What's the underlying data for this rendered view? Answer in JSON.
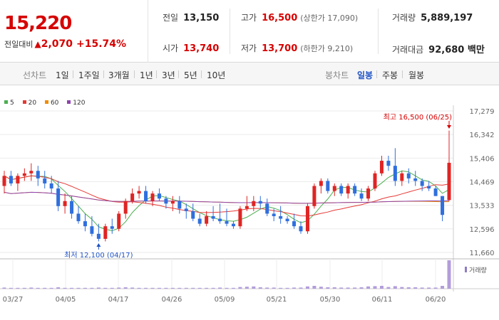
{
  "quote": {
    "price": "15,220",
    "change_label": "전일대비",
    "change_arrow": "▲",
    "change_amount": "2,070",
    "change_percent": "+15.74%"
  },
  "stats": {
    "prev_close": {
      "label": "전일",
      "value": "13,150"
    },
    "high": {
      "label": "고가",
      "value": "16,500",
      "sub": "(상한가 17,090)"
    },
    "volume": {
      "label": "거래량",
      "value": "5,889,197"
    },
    "open": {
      "label": "시가",
      "value": "13,740"
    },
    "low": {
      "label": "저가",
      "value": "13,700",
      "sub": "(하한가 9,210)"
    },
    "amount": {
      "label": "거래대금",
      "value": "92,680 백만"
    }
  },
  "periods": {
    "label": "선차트",
    "items": [
      "1일",
      "1주일",
      "3개월",
      "1년",
      "3년",
      "5년",
      "10년"
    ],
    "candle_label": "봉차트",
    "candle_items": [
      "일봉",
      "주봉",
      "월봉"
    ],
    "selected_candle": "일봉"
  },
  "legend": [
    {
      "label": "5",
      "color": "#4caf50"
    },
    {
      "label": "20",
      "color": "#e53935"
    },
    {
      "label": "60",
      "color": "#f08c00"
    },
    {
      "label": "120",
      "color": "#8e44ad"
    }
  ],
  "colors": {
    "up": "#e02424",
    "down": "#2f6fde"
  },
  "chart_data": {
    "type": "candlestick",
    "y_ticks": [
      "17,279",
      "16,342",
      "15,406",
      "14,469",
      "13,533",
      "12,596",
      "11,660"
    ],
    "ylim": [
      11660,
      17279
    ],
    "x_ticks": [
      "03/27",
      "04/05",
      "04/17",
      "04/26",
      "05/09",
      "05/21",
      "05/30",
      "06/11",
      "06/20"
    ],
    "annotations": {
      "high": "최고 16,500 (06/25)",
      "low": "최저 12,100 (04/17)"
    },
    "volume_label": "거래량",
    "candles": [
      {
        "o": 14300,
        "h": 14900,
        "l": 14000,
        "c": 14700
      },
      {
        "o": 14700,
        "h": 14900,
        "l": 14300,
        "c": 14400
      },
      {
        "o": 14400,
        "h": 14800,
        "l": 14100,
        "c": 14700
      },
      {
        "o": 14700,
        "h": 15000,
        "l": 14500,
        "c": 14800
      },
      {
        "o": 14800,
        "h": 15200,
        "l": 14500,
        "c": 14900
      },
      {
        "o": 14900,
        "h": 15100,
        "l": 14300,
        "c": 14600
      },
      {
        "o": 14600,
        "h": 14900,
        "l": 14200,
        "c": 14400
      },
      {
        "o": 14400,
        "h": 14700,
        "l": 14000,
        "c": 14200
      },
      {
        "o": 14200,
        "h": 14500,
        "l": 13300,
        "c": 13500
      },
      {
        "o": 13500,
        "h": 14000,
        "l": 13200,
        "c": 13700
      },
      {
        "o": 13700,
        "h": 13900,
        "l": 13000,
        "c": 13200
      },
      {
        "o": 13200,
        "h": 13500,
        "l": 12800,
        "c": 12900
      },
      {
        "o": 12900,
        "h": 13200,
        "l": 12500,
        "c": 12700
      },
      {
        "o": 12700,
        "h": 13100,
        "l": 12300,
        "c": 12400
      },
      {
        "o": 12400,
        "h": 12800,
        "l": 12100,
        "c": 12200
      },
      {
        "o": 12200,
        "h": 12800,
        "l": 12100,
        "c": 12700
      },
      {
        "o": 12700,
        "h": 13000,
        "l": 12400,
        "c": 12600
      },
      {
        "o": 12600,
        "h": 13300,
        "l": 12500,
        "c": 13200
      },
      {
        "o": 13200,
        "h": 13800,
        "l": 13000,
        "c": 13700
      },
      {
        "o": 13700,
        "h": 14200,
        "l": 13600,
        "c": 14000
      },
      {
        "o": 14000,
        "h": 14300,
        "l": 13800,
        "c": 14100
      },
      {
        "o": 14100,
        "h": 14300,
        "l": 13600,
        "c": 13700
      },
      {
        "o": 13700,
        "h": 14100,
        "l": 13500,
        "c": 14000
      },
      {
        "o": 14000,
        "h": 14200,
        "l": 13700,
        "c": 13800
      },
      {
        "o": 13800,
        "h": 13900,
        "l": 13400,
        "c": 13600
      },
      {
        "o": 13600,
        "h": 13900,
        "l": 13300,
        "c": 13700
      },
      {
        "o": 13700,
        "h": 13900,
        "l": 13200,
        "c": 13400
      },
      {
        "o": 13400,
        "h": 13600,
        "l": 13000,
        "c": 13300
      },
      {
        "o": 13300,
        "h": 13600,
        "l": 12900,
        "c": 13000
      },
      {
        "o": 13000,
        "h": 13200,
        "l": 12700,
        "c": 12800
      },
      {
        "o": 12800,
        "h": 13300,
        "l": 12700,
        "c": 13100
      },
      {
        "o": 13100,
        "h": 13500,
        "l": 12900,
        "c": 13000
      },
      {
        "o": 13000,
        "h": 13600,
        "l": 12800,
        "c": 12900
      },
      {
        "o": 12900,
        "h": 13400,
        "l": 12700,
        "c": 12800
      },
      {
        "o": 12800,
        "h": 12900,
        "l": 12600,
        "c": 12700
      },
      {
        "o": 12700,
        "h": 13500,
        "l": 12600,
        "c": 13400
      },
      {
        "o": 13400,
        "h": 13900,
        "l": 13300,
        "c": 13500
      },
      {
        "o": 13500,
        "h": 13900,
        "l": 13300,
        "c": 13700
      },
      {
        "o": 13700,
        "h": 13900,
        "l": 13400,
        "c": 13600
      },
      {
        "o": 13600,
        "h": 13800,
        "l": 13100,
        "c": 13200
      },
      {
        "o": 13200,
        "h": 13400,
        "l": 12900,
        "c": 13100
      },
      {
        "o": 13100,
        "h": 13500,
        "l": 12800,
        "c": 13000
      },
      {
        "o": 13000,
        "h": 13100,
        "l": 12800,
        "c": 12900
      },
      {
        "o": 12900,
        "h": 13200,
        "l": 12600,
        "c": 12700
      },
      {
        "o": 12700,
        "h": 12900,
        "l": 12400,
        "c": 12500
      },
      {
        "o": 12500,
        "h": 13600,
        "l": 12400,
        "c": 13500
      },
      {
        "o": 13500,
        "h": 14400,
        "l": 13400,
        "c": 14300
      },
      {
        "o": 14300,
        "h": 14600,
        "l": 14000,
        "c": 14500
      },
      {
        "o": 14500,
        "h": 14600,
        "l": 14000,
        "c": 14100
      },
      {
        "o": 14100,
        "h": 14400,
        "l": 13900,
        "c": 14300
      },
      {
        "o": 14300,
        "h": 14400,
        "l": 13900,
        "c": 14000
      },
      {
        "o": 14000,
        "h": 14400,
        "l": 13800,
        "c": 14300
      },
      {
        "o": 14300,
        "h": 14400,
        "l": 13900,
        "c": 14000
      },
      {
        "o": 14000,
        "h": 14200,
        "l": 13700,
        "c": 13800
      },
      {
        "o": 13800,
        "h": 14300,
        "l": 13700,
        "c": 14200
      },
      {
        "o": 14200,
        "h": 14900,
        "l": 14100,
        "c": 14800
      },
      {
        "o": 14800,
        "h": 15500,
        "l": 14700,
        "c": 15300
      },
      {
        "o": 15300,
        "h": 15500,
        "l": 14900,
        "c": 15100
      },
      {
        "o": 15100,
        "h": 15800,
        "l": 14300,
        "c": 14500
      },
      {
        "o": 14500,
        "h": 14900,
        "l": 14300,
        "c": 14800
      },
      {
        "o": 14800,
        "h": 15000,
        "l": 14400,
        "c": 14600
      },
      {
        "o": 14600,
        "h": 14900,
        "l": 14300,
        "c": 14500
      },
      {
        "o": 14500,
        "h": 14600,
        "l": 14100,
        "c": 14300
      },
      {
        "o": 14300,
        "h": 14500,
        "l": 14100,
        "c": 14200
      },
      {
        "o": 14200,
        "h": 14300,
        "l": 13900,
        "c": 13900
      },
      {
        "o": 13900,
        "h": 13900,
        "l": 12900,
        "c": 13150
      },
      {
        "o": 13740,
        "h": 16500,
        "l": 13700,
        "c": 15220
      }
    ],
    "volume": [
      0.04,
      0.03,
      0.03,
      0.03,
      0.04,
      0.03,
      0.03,
      0.03,
      0.05,
      0.03,
      0.03,
      0.03,
      0.03,
      0.03,
      0.04,
      0.03,
      0.03,
      0.04,
      0.05,
      0.04,
      0.03,
      0.03,
      0.03,
      0.03,
      0.03,
      0.03,
      0.03,
      0.03,
      0.03,
      0.03,
      0.03,
      0.03,
      0.04,
      0.03,
      0.03,
      0.06,
      0.07,
      0.08,
      0.05,
      0.04,
      0.04,
      0.03,
      0.03,
      0.04,
      0.04,
      0.08,
      0.1,
      0.07,
      0.05,
      0.05,
      0.04,
      0.04,
      0.04,
      0.05,
      0.08,
      0.09,
      0.1,
      0.06,
      0.09,
      0.06,
      0.05,
      0.05,
      0.04,
      0.04,
      0.04,
      0.1,
      1.0
    ]
  }
}
